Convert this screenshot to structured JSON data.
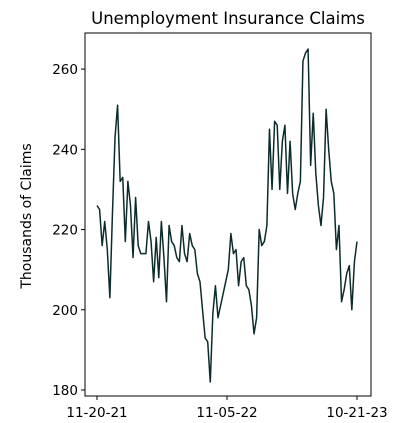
{
  "chart_data": {
    "type": "line",
    "title": "Unemployment Insurance Claims",
    "xlabel": "",
    "ylabel": "Thousands of Claims",
    "ylim": [
      178.5,
      269
    ],
    "yticks": [
      180,
      200,
      220,
      240,
      260
    ],
    "xticks": [
      "11-20-21",
      "11-05-22",
      "10-21-23"
    ],
    "grid": false,
    "line_color": "#0d2b2b",
    "series": [
      {
        "values": [
          226,
          225,
          216,
          222,
          215,
          203,
          224,
          243,
          251,
          232,
          233,
          217,
          232,
          226,
          213,
          228,
          216,
          214,
          214,
          214,
          222,
          217,
          207,
          218,
          208,
          222,
          213,
          202,
          221,
          217,
          216,
          213,
          212,
          221,
          214,
          212,
          219,
          216,
          215,
          209,
          207,
          200,
          193,
          192,
          182,
          199,
          206,
          198,
          201,
          204,
          207,
          210,
          219,
          214,
          215,
          206,
          212,
          213,
          206,
          205,
          201,
          194,
          198,
          220,
          216,
          217,
          221,
          245,
          230,
          247,
          246,
          230,
          242,
          246,
          229,
          242,
          229,
          225,
          229,
          232,
          262,
          264,
          265,
          236,
          249,
          234,
          226,
          221,
          228,
          250,
          240,
          232,
          229,
          215,
          221,
          202,
          205,
          209,
          211,
          200,
          212,
          217
        ]
      }
    ]
  }
}
